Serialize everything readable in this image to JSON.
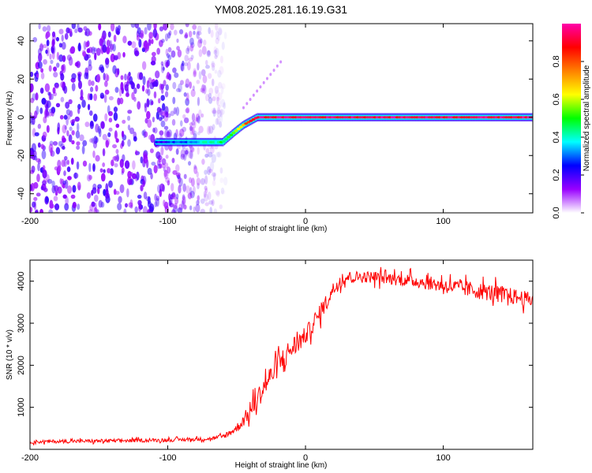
{
  "title": "YM08.2025.281.16.19.G31",
  "colorbar": {
    "label": "Normalized spectral amplitude",
    "ticks": [
      0.0,
      0.2,
      0.4,
      0.6,
      0.8
    ],
    "tick_labels": [
      "0.0",
      "0.2",
      "0.4",
      "0.6",
      "0.8"
    ],
    "range": [
      0,
      1
    ],
    "colors": [
      "#ffffff",
      "#9900ff",
      "#0000ff",
      "#00ffff",
      "#00ff00",
      "#ffff00",
      "#ff8000",
      "#ff0000",
      "#ff00aa"
    ]
  },
  "chart_data": [
    {
      "type": "heatmap",
      "name": "spectrogram",
      "xlabel": "Height of straight line (km)",
      "ylabel": "Frequency (Hz)",
      "xlim": [
        -200,
        165
      ],
      "ylim": [
        -50,
        49
      ],
      "xticks": [
        -200,
        -100,
        0,
        100
      ],
      "xtick_labels": [
        "-200",
        "-100",
        "0",
        "100"
      ],
      "yticks": [
        -40,
        -20,
        0,
        20,
        40
      ],
      "ytick_labels": [
        "-40",
        "-20",
        "0",
        "20",
        "40"
      ],
      "ridge": {
        "x": [
          -108,
          -60,
          -52,
          -45,
          -40,
          -35,
          -25,
          165
        ],
        "y": [
          -13,
          -13,
          -8,
          -4,
          -2,
          0,
          0,
          0
        ],
        "amplitude": [
          0.2,
          0.45,
          0.55,
          0.7,
          0.85,
          0.95,
          0.95,
          0.95
        ]
      },
      "noise_region_km": [
        -200,
        -58
      ],
      "diagonal_streak": {
        "x": [
          -45,
          -18
        ],
        "y": [
          5,
          29
        ]
      }
    },
    {
      "type": "line",
      "name": "snr",
      "xlabel": "Height of straight line (km)",
      "ylabel": "SNR (10 * v/v)",
      "xlim": [
        -200,
        165
      ],
      "ylim": [
        0,
        4500
      ],
      "xticks": [
        -200,
        -100,
        0,
        100
      ],
      "xtick_labels": [
        "-200",
        "-100",
        "0",
        "100"
      ],
      "yticks": [
        1000,
        2000,
        3000,
        4000
      ],
      "ytick_labels": [
        "1000",
        "2000",
        "3000",
        "4000"
      ],
      "color": "#ff0000",
      "series": [
        {
          "name": "SNR",
          "x": [
            -200,
            -150,
            -100,
            -70,
            -60,
            -50,
            -40,
            -30,
            -20,
            -10,
            0,
            10,
            20,
            25,
            30,
            50,
            80,
            100,
            120,
            140,
            165
          ],
          "y": [
            180,
            200,
            220,
            250,
            300,
            500,
            900,
            1500,
            2000,
            2400,
            2700,
            3200,
            3800,
            4000,
            4100,
            4100,
            4000,
            3900,
            3800,
            3700,
            3550
          ],
          "noise": [
            60,
            60,
            60,
            60,
            80,
            150,
            300,
            400,
            400,
            400,
            300,
            300,
            250,
            250,
            200,
            200,
            220,
            250,
            280,
            300,
            250
          ]
        }
      ]
    }
  ]
}
